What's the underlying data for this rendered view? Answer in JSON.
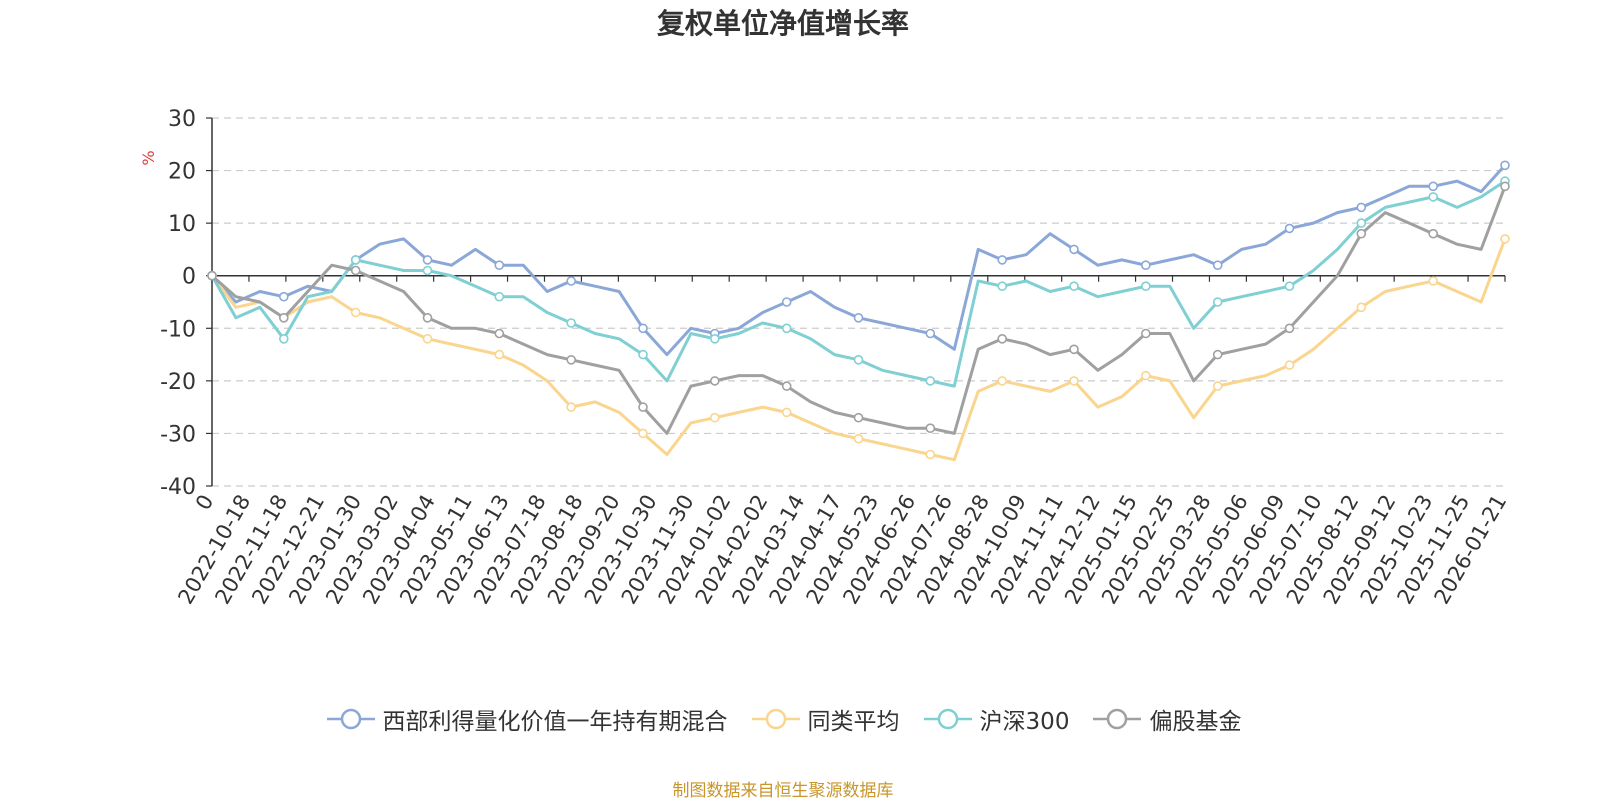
{
  "chart_data": {
    "type": "line",
    "title": "复权单位净值增长率",
    "ylabel": "%",
    "ylim": [
      -40,
      30
    ],
    "yticks": [
      30,
      20,
      10,
      0,
      -10,
      -20,
      -30,
      -40
    ],
    "x_origin_label": "0",
    "x_tick_labels": [
      "2022-10-18",
      "2022-11-18",
      "2022-12-21",
      "2023-01-30",
      "2023-03-02",
      "2023-04-04",
      "2023-05-11",
      "2023-06-13",
      "2023-07-18",
      "2023-08-18",
      "2023-09-20",
      "2023-10-30",
      "2023-11-30",
      "2024-01-02",
      "2024-02-02",
      "2024-03-14",
      "2024-04-17",
      "2024-05-23",
      "2024-06-26",
      "2024-07-26",
      "2024-08-28",
      "2024-10-09",
      "2024-11-11",
      "2024-12-12",
      "2025-01-15",
      "2025-02-25",
      "2025-03-28",
      "2025-05-06",
      "2025-06-09",
      "2025-07-10",
      "2025-08-12",
      "2025-09-12",
      "2025-10-23",
      "2025-11-25",
      "2026-01-21"
    ],
    "grid": true,
    "legend_position": "bottom",
    "series": [
      {
        "name": "西部利得量化价值一年持有期混合",
        "color": "#8aa7d8",
        "values": [
          0,
          -5,
          -3,
          -4,
          -2,
          -3,
          3,
          6,
          7,
          3,
          2,
          5,
          2,
          2,
          -3,
          -1,
          -2,
          -3,
          -10,
          -15,
          -10,
          -11,
          -10,
          -7,
          -5,
          -3,
          -6,
          -8,
          -9,
          -10,
          -11,
          -14,
          5,
          3,
          4,
          8,
          5,
          2,
          3,
          2,
          3,
          4,
          2,
          5,
          6,
          9,
          10,
          12,
          13,
          15,
          17,
          17,
          18,
          16,
          21
        ]
      },
      {
        "name": "同类平均",
        "color": "#f9d58e",
        "values": [
          0,
          -6,
          -5,
          -8,
          -5,
          -4,
          -7,
          -8,
          -10,
          -12,
          -13,
          -14,
          -15,
          -17,
          -20,
          -25,
          -24,
          -26,
          -30,
          -34,
          -28,
          -27,
          -26,
          -25,
          -26,
          -28,
          -30,
          -31,
          -32,
          -33,
          -34,
          -35,
          -22,
          -20,
          -21,
          -22,
          -20,
          -25,
          -23,
          -19,
          -20,
          -27,
          -21,
          -20,
          -19,
          -17,
          -14,
          -10,
          -6,
          -3,
          -2,
          -1,
          -3,
          -5,
          7
        ]
      },
      {
        "name": "沪深300",
        "color": "#7fcfd3",
        "values": [
          0,
          -8,
          -6,
          -12,
          -4,
          -3,
          3,
          2,
          1,
          1,
          0,
          -2,
          -4,
          -4,
          -7,
          -9,
          -11,
          -12,
          -15,
          -20,
          -11,
          -12,
          -11,
          -9,
          -10,
          -12,
          -15,
          -16,
          -18,
          -19,
          -20,
          -21,
          -1,
          -2,
          -1,
          -3,
          -2,
          -4,
          -3,
          -2,
          -2,
          -10,
          -5,
          -4,
          -3,
          -2,
          1,
          5,
          10,
          13,
          14,
          15,
          13,
          15,
          18
        ]
      },
      {
        "name": "偏股基金",
        "color": "#a0a0a0",
        "values": [
          0,
          -4,
          -5,
          -8,
          -3,
          2,
          1,
          -1,
          -3,
          -8,
          -10,
          -10,
          -11,
          -13,
          -15,
          -16,
          -17,
          -18,
          -25,
          -30,
          -21,
          -20,
          -19,
          -19,
          -21,
          -24,
          -26,
          -27,
          -28,
          -29,
          -29,
          -30,
          -14,
          -12,
          -13,
          -15,
          -14,
          -18,
          -15,
          -11,
          -11,
          -20,
          -15,
          -14,
          -13,
          -10,
          -5,
          0,
          8,
          12,
          10,
          8,
          6,
          5,
          17
        ]
      }
    ]
  },
  "source_note": "制图数据来自恒生聚源数据库"
}
